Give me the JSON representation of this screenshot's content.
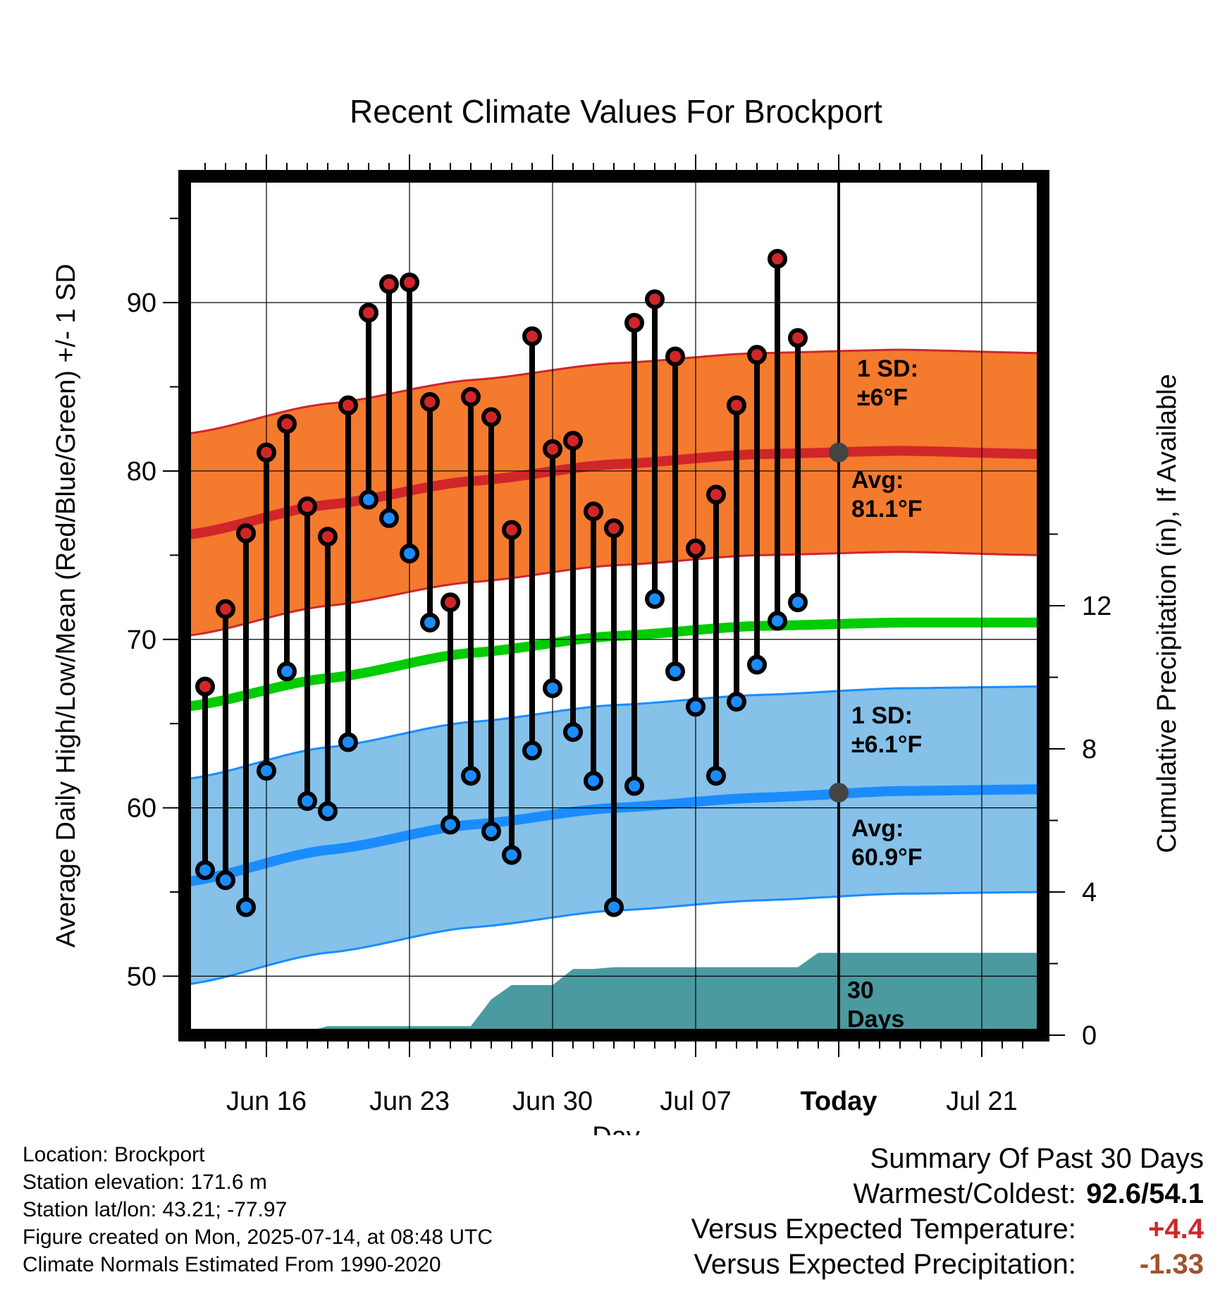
{
  "chart_data": {
    "type": "line",
    "title": "Recent Climate Values For Brockport",
    "xlabel": "Day",
    "ylabel": "Average Daily High/Low/Mean (Red/Blue/Green) +/- 1 SD",
    "y2label": "Cumulative Precipitation (in), If Available",
    "xlim": [
      "2025-06-12",
      "2025-07-24"
    ],
    "ylim": [
      46.5,
      97.5
    ],
    "y2lim": [
      0,
      24
    ],
    "y_ticks": [
      50,
      60,
      70,
      80,
      90
    ],
    "y2_ticks": [
      0,
      4,
      8,
      12
    ],
    "x_ticks": [
      {
        "date": "2025-06-16",
        "label": "Jun 16"
      },
      {
        "date": "2025-06-23",
        "label": "Jun 23"
      },
      {
        "date": "2025-06-30",
        "label": "Jun 30"
      },
      {
        "date": "2025-07-07",
        "label": "Jul 07"
      },
      {
        "date": "2025-07-14",
        "label": "Today"
      },
      {
        "date": "2025-07-21",
        "label": "Jul 21"
      }
    ],
    "grid": true,
    "today": "2025-07-14",
    "colors": {
      "high_band": "#f47a2e",
      "high_line": "#d0262a",
      "low_band": "#85c1e9",
      "low_line": "#1a8cff",
      "mean_line": "#00cc00",
      "precip": "#4a9aa0",
      "high_marker": "#d0262a",
      "low_marker": "#1a8cff"
    },
    "normals": {
      "x": [
        "2025-06-12",
        "2025-06-19",
        "2025-06-26",
        "2025-07-03",
        "2025-07-10",
        "2025-07-17",
        "2025-07-24"
      ],
      "high_avg": [
        76.2,
        78.0,
        79.4,
        80.4,
        81.0,
        81.2,
        81.0
      ],
      "high_sd": 6,
      "low_avg": [
        55.6,
        57.5,
        59.0,
        60.0,
        60.6,
        61.0,
        61.1
      ],
      "low_sd": 6.1,
      "mean_avg": [
        66.0,
        67.7,
        69.2,
        70.2,
        70.8,
        71.0,
        71.0
      ]
    },
    "series": [
      {
        "name": "High",
        "x": [
          "2025-06-13",
          "2025-06-14",
          "2025-06-15",
          "2025-06-16",
          "2025-06-17",
          "2025-06-18",
          "2025-06-19",
          "2025-06-20",
          "2025-06-21",
          "2025-06-22",
          "2025-06-23",
          "2025-06-24",
          "2025-06-25",
          "2025-06-26",
          "2025-06-27",
          "2025-06-28",
          "2025-06-29",
          "2025-06-30",
          "2025-07-01",
          "2025-07-02",
          "2025-07-03",
          "2025-07-04",
          "2025-07-05",
          "2025-07-06",
          "2025-07-07",
          "2025-07-08",
          "2025-07-09",
          "2025-07-10",
          "2025-07-11",
          "2025-07-12",
          "2025-07-13"
        ],
        "values": [
          67.2,
          71.8,
          76.3,
          81.1,
          82.8,
          77.9,
          76.1,
          83.9,
          89.4,
          91.1,
          91.2,
          84.1,
          72.2,
          84.4,
          83.2,
          76.5,
          88.0,
          81.3,
          81.8,
          77.6,
          76.6,
          88.8,
          90.2,
          86.8,
          75.4,
          78.6,
          83.9,
          86.9,
          92.6,
          87.9,
          null
        ]
      },
      {
        "name": "Low",
        "x": [
          "2025-06-13",
          "2025-06-14",
          "2025-06-15",
          "2025-06-16",
          "2025-06-17",
          "2025-06-18",
          "2025-06-19",
          "2025-06-20",
          "2025-06-21",
          "2025-06-22",
          "2025-06-23",
          "2025-06-24",
          "2025-06-25",
          "2025-06-26",
          "2025-06-27",
          "2025-06-28",
          "2025-06-29",
          "2025-06-30",
          "2025-07-01",
          "2025-07-02",
          "2025-07-03",
          "2025-07-04",
          "2025-07-05",
          "2025-07-06",
          "2025-07-07",
          "2025-07-08",
          "2025-07-09",
          "2025-07-10",
          "2025-07-11",
          "2025-07-12",
          "2025-07-13"
        ],
        "values": [
          56.3,
          55.7,
          54.1,
          62.2,
          68.1,
          60.4,
          59.8,
          63.9,
          78.3,
          77.2,
          75.1,
          71.0,
          59.0,
          61.9,
          58.6,
          57.2,
          63.4,
          67.1,
          64.5,
          61.6,
          54.1,
          61.3,
          72.4,
          68.1,
          66.0,
          61.9,
          66.3,
          68.5,
          71.1,
          72.2,
          null
        ]
      },
      {
        "name": "Cumulative Precipitation",
        "x": [
          "2025-06-13",
          "2025-06-14",
          "2025-06-15",
          "2025-06-16",
          "2025-06-17",
          "2025-06-18",
          "2025-06-19",
          "2025-06-20",
          "2025-06-21",
          "2025-06-22",
          "2025-06-23",
          "2025-06-24",
          "2025-06-25",
          "2025-06-26",
          "2025-06-27",
          "2025-06-28",
          "2025-06-29",
          "2025-06-30",
          "2025-07-01",
          "2025-07-02",
          "2025-07-03",
          "2025-07-04",
          "2025-07-05",
          "2025-07-06",
          "2025-07-07",
          "2025-07-08",
          "2025-07-09",
          "2025-07-10",
          "2025-07-11",
          "2025-07-12",
          "2025-07-13",
          "2025-07-14",
          "2025-07-24"
        ],
        "values": [
          0,
          0,
          0,
          0,
          0,
          0.1,
          0.25,
          0.25,
          0.25,
          0.25,
          0.25,
          0.25,
          0.25,
          0.25,
          1.0,
          1.4,
          1.4,
          1.4,
          1.85,
          1.85,
          1.9,
          1.9,
          1.9,
          1.9,
          1.9,
          1.9,
          1.9,
          1.9,
          1.9,
          1.9,
          2.3,
          2.3,
          2.3
        ]
      }
    ],
    "annotations": {
      "high_sd_label": [
        "1 SD:",
        "±6°F"
      ],
      "high_avg_label": [
        "Avg:",
        "81.1°F"
      ],
      "low_sd_label": [
        "1 SD:",
        "±6.1°F"
      ],
      "low_avg_label": [
        "Avg:",
        "60.9°F"
      ],
      "days_label": [
        "30",
        "Days"
      ],
      "today_high_avg": 81.1,
      "today_low_avg": 60.9
    }
  },
  "footer": {
    "location": "Location: Brockport",
    "elevation": "Station elevation: 171.6 m",
    "latlon": "Station lat/lon: 43.21; -77.97",
    "created": "Figure created on Mon, 2025-07-14, at 08:48 UTC",
    "normals": "Climate Normals Estimated From 1990-2020"
  },
  "summary": {
    "title": "Summary Of Past 30 Days",
    "warmest_coldest_label": "Warmest/Coldest:",
    "warmest_coldest_value": "92.6/54.1",
    "temp_label": "Versus Expected Temperature:",
    "temp_value": "+4.4",
    "temp_color": "#d0262a",
    "precip_label": "Versus Expected Precipitation:",
    "precip_value": "-1.33",
    "precip_color": "#a0522d"
  }
}
